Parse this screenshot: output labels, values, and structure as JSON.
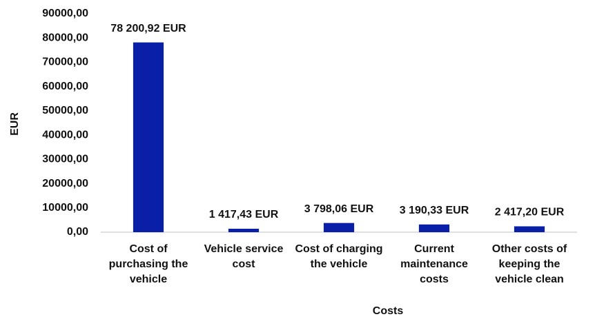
{
  "chart_data": {
    "type": "bar",
    "x_label": "Costs",
    "y_label": "EUR",
    "categories": [
      "Cost of purchasing the vehicle",
      "Vehicle service cost",
      "Cost of charging the vehicle",
      "Current maintenance costs",
      "Other costs of keeping the vehicle clean"
    ],
    "values": [
      78200.92,
      1417.43,
      3798.06,
      3190.33,
      2417.2
    ],
    "value_labels": [
      "78 200,92 EUR",
      "1 417,43 EUR",
      "3 798,06 EUR",
      "3 190,33 EUR",
      "2 417,20 EUR"
    ],
    "color": "#0a1fa8",
    "ylim": [
      0,
      90000
    ],
    "yticks": [
      {
        "value": 0,
        "label": "0,00"
      },
      {
        "value": 10000,
        "label": "10000,00"
      },
      {
        "value": 20000,
        "label": "20000,00"
      },
      {
        "value": 30000,
        "label": "30000,00"
      },
      {
        "value": 40000,
        "label": "40000,00"
      },
      {
        "value": 50000,
        "label": "50000,00"
      },
      {
        "value": 60000,
        "label": "60000,00"
      },
      {
        "value": 70000,
        "label": "70000,00"
      },
      {
        "value": 80000,
        "label": "80000,00"
      },
      {
        "value": 90000,
        "label": "90000,00"
      }
    ],
    "grid": false
  }
}
